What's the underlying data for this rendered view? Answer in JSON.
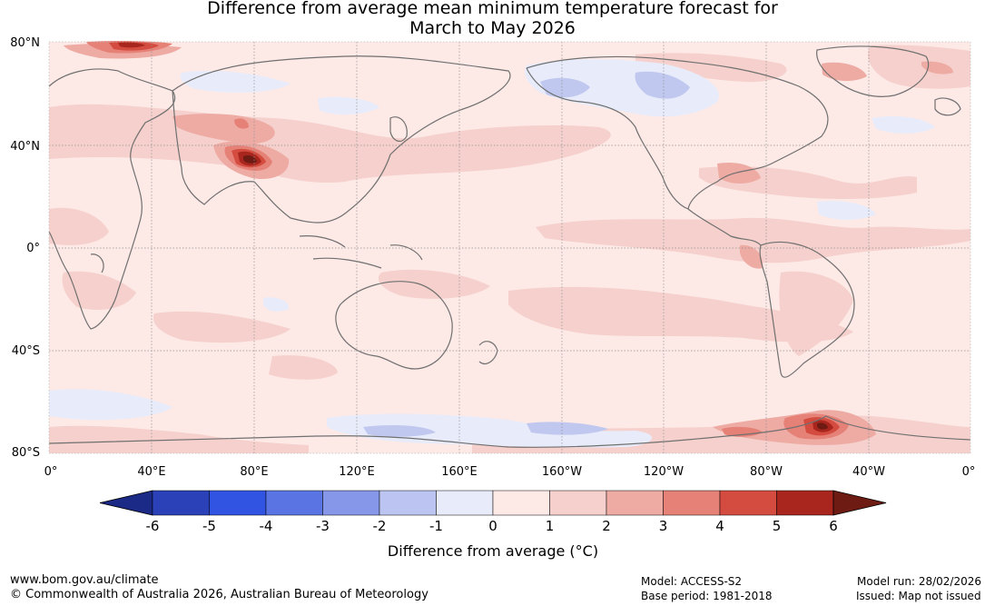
{
  "title": {
    "line1": "Difference from average mean minimum temperature forecast for",
    "line2": "March to May 2026"
  },
  "map": {
    "lat_labels": [
      "80°N",
      "40°N",
      "0°",
      "40°S",
      "80°S"
    ],
    "lon_labels": [
      "0°",
      "40°E",
      "80°E",
      "120°E",
      "160°E",
      "160°W",
      "120°W",
      "80°W",
      "40°W",
      "0°"
    ],
    "colors": {
      "ocean_base": "#fde9e6",
      "land_outline": "#707070",
      "anomaly_1_2": "#f5d0cc",
      "anomaly_2_3": "#eeaba4",
      "anomaly_3_4": "#e58177",
      "anomaly_4_5": "#d44c3f",
      "anomaly_5_6": "#a8261d",
      "anomaly_6plus": "#6e1c13",
      "anomaly_neg1_0": "#e8ecfa",
      "anomaly_neg2_neg1": "#c0c8f0"
    }
  },
  "colorbar": {
    "ticks": [
      "-6",
      "-5",
      "-4",
      "-3",
      "-2",
      "-1",
      "0",
      "1",
      "2",
      "3",
      "4",
      "5",
      "6"
    ],
    "colors": [
      "#1b2a86",
      "#2a41b8",
      "#3154e3",
      "#5a75e3",
      "#8696e8",
      "#bcc5f1",
      "#e8ecfa",
      "#fde9e6",
      "#f5d0cc",
      "#eeaba4",
      "#e58177",
      "#d44c3f",
      "#a8261d",
      "#6e1c13"
    ],
    "label": "Difference from average (°C)"
  },
  "footer": {
    "website": "www.bom.gov.au/climate",
    "copyright": "© Commonwealth of Australia 2026, Australian Bureau of Meteorology",
    "model": "Model: ACCESS-S2",
    "base_period": "Base period: 1981-2018",
    "model_run": "Model run: 28/02/2026",
    "issued": "Issued: Map not issued"
  }
}
